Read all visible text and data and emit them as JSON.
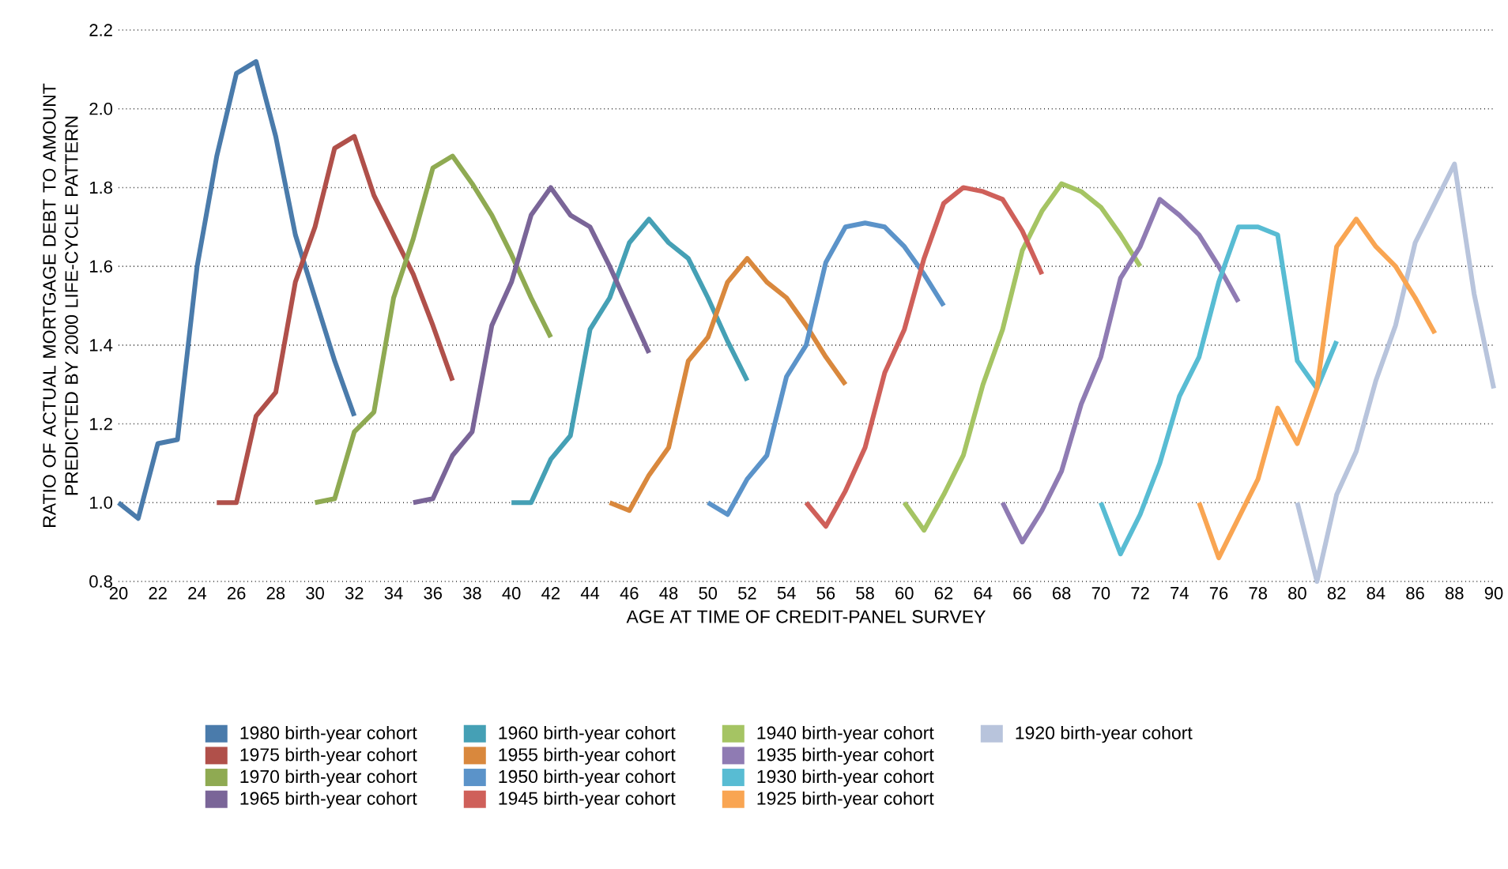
{
  "chart_data": {
    "type": "line",
    "xlabel": "AGE AT TIME OF CREDIT-PANEL SURVEY",
    "ylabel": "RATIO OF ACTUAL MORTGAGE DEBT TO AMOUNT PREDICTED BY 2000 LIFE-CYCLE PATTERN",
    "xlim": [
      20,
      90
    ],
    "ylim": [
      0.8,
      2.2
    ],
    "xticks": [
      20,
      22,
      24,
      26,
      28,
      30,
      32,
      34,
      36,
      38,
      40,
      42,
      44,
      46,
      48,
      50,
      52,
      54,
      56,
      58,
      60,
      62,
      64,
      66,
      68,
      70,
      72,
      74,
      76,
      78,
      80,
      82,
      84,
      86,
      88,
      90
    ],
    "yticks": [
      {
        "value": 0.8,
        "label": "0.8"
      },
      {
        "value": 1.0,
        "label": "1.0"
      },
      {
        "value": 1.2,
        "label": "1.2"
      },
      {
        "value": 1.4,
        "label": "1.4"
      },
      {
        "value": 1.6,
        "label": "1.6"
      },
      {
        "value": 1.8,
        "label": "1.8"
      },
      {
        "value": 2.0,
        "label": "2.0"
      },
      {
        "value": 2.2,
        "label": "2.2"
      }
    ],
    "grid": "y",
    "legend": "bottom",
    "marker": "none",
    "line_style": "solid",
    "series": [
      {
        "name": "1980 birth-year cohort",
        "color": "#4a7bab",
        "x": [
          20,
          21,
          22,
          23,
          24,
          25,
          26,
          27,
          28,
          29,
          30,
          31,
          32
        ],
        "values": [
          1.0,
          0.96,
          1.15,
          1.16,
          1.6,
          1.88,
          2.09,
          2.12,
          1.93,
          1.68,
          1.52,
          1.36,
          1.22
        ]
      },
      {
        "name": "1975 birth-year cohort",
        "color": "#b0504a",
        "x": [
          25,
          26,
          27,
          28,
          29,
          30,
          31,
          32,
          33,
          34,
          35,
          36,
          37
        ],
        "values": [
          1.0,
          1.0,
          1.22,
          1.28,
          1.56,
          1.7,
          1.9,
          1.93,
          1.78,
          1.68,
          1.58,
          1.45,
          1.31
        ]
      },
      {
        "name": "1970 birth-year cohort",
        "color": "#8faa52",
        "x": [
          30,
          31,
          32,
          33,
          34,
          35,
          36,
          37,
          38,
          39,
          40,
          41,
          42
        ],
        "values": [
          1.0,
          1.01,
          1.18,
          1.23,
          1.52,
          1.67,
          1.85,
          1.88,
          1.81,
          1.73,
          1.63,
          1.52,
          1.42
        ]
      },
      {
        "name": "1965 birth-year cohort",
        "color": "#7a6598",
        "x": [
          35,
          36,
          37,
          38,
          39,
          40,
          41,
          42,
          43,
          44,
          45,
          46,
          47
        ],
        "values": [
          1.0,
          1.01,
          1.12,
          1.18,
          1.45,
          1.56,
          1.73,
          1.8,
          1.73,
          1.7,
          1.6,
          1.49,
          1.38
        ]
      },
      {
        "name": "1960 birth-year cohort",
        "color": "#45a0b5",
        "x": [
          40,
          41,
          42,
          43,
          44,
          45,
          46,
          47,
          48,
          49,
          50,
          51,
          52
        ],
        "values": [
          1.0,
          1.0,
          1.11,
          1.17,
          1.44,
          1.52,
          1.66,
          1.72,
          1.66,
          1.62,
          1.52,
          1.41,
          1.31
        ]
      },
      {
        "name": "1955 birth-year cohort",
        "color": "#d9883d",
        "x": [
          45,
          46,
          47,
          48,
          49,
          50,
          51,
          52,
          53,
          54,
          55,
          56,
          57
        ],
        "values": [
          1.0,
          0.98,
          1.07,
          1.14,
          1.36,
          1.42,
          1.56,
          1.62,
          1.56,
          1.52,
          1.45,
          1.37,
          1.3
        ]
      },
      {
        "name": "1950 birth-year cohort",
        "color": "#5b93c9",
        "x": [
          50,
          51,
          52,
          53,
          54,
          55,
          56,
          57,
          58,
          59,
          60,
          61,
          62
        ],
        "values": [
          1.0,
          0.97,
          1.06,
          1.12,
          1.32,
          1.4,
          1.61,
          1.7,
          1.71,
          1.7,
          1.65,
          1.58,
          1.5
        ]
      },
      {
        "name": "1945 birth-year cohort",
        "color": "#cf605a",
        "x": [
          55,
          56,
          57,
          58,
          59,
          60,
          61,
          62,
          63,
          64,
          65,
          66,
          67
        ],
        "values": [
          1.0,
          0.94,
          1.03,
          1.14,
          1.33,
          1.44,
          1.62,
          1.76,
          1.8,
          1.79,
          1.77,
          1.69,
          1.58
        ]
      },
      {
        "name": "1940 birth-year cohort",
        "color": "#a5c463",
        "x": [
          60,
          61,
          62,
          63,
          64,
          65,
          66,
          67,
          68,
          69,
          70,
          71,
          72
        ],
        "values": [
          1.0,
          0.93,
          1.02,
          1.12,
          1.3,
          1.44,
          1.64,
          1.74,
          1.81,
          1.79,
          1.75,
          1.68,
          1.6
        ]
      },
      {
        "name": "1935 birth-year cohort",
        "color": "#8f7bb3",
        "x": [
          65,
          66,
          67,
          68,
          69,
          70,
          71,
          72,
          73,
          74,
          75,
          76,
          77
        ],
        "values": [
          1.0,
          0.9,
          0.98,
          1.08,
          1.25,
          1.37,
          1.57,
          1.65,
          1.77,
          1.73,
          1.68,
          1.6,
          1.51
        ]
      },
      {
        "name": "1930 birth-year cohort",
        "color": "#58bcd3",
        "x": [
          70,
          71,
          72,
          73,
          74,
          75,
          76,
          77,
          78,
          79,
          80,
          81,
          82
        ],
        "values": [
          1.0,
          0.87,
          0.97,
          1.1,
          1.27,
          1.37,
          1.56,
          1.7,
          1.7,
          1.68,
          1.36,
          1.29,
          1.41
        ]
      },
      {
        "name": "1925 birth-year cohort",
        "color": "#f9a552",
        "x": [
          75,
          76,
          77,
          78,
          79,
          80,
          81,
          82,
          83,
          84,
          85,
          86,
          87
        ],
        "values": [
          1.0,
          0.86,
          0.96,
          1.06,
          1.24,
          1.15,
          1.29,
          1.65,
          1.72,
          1.65,
          1.6,
          1.52,
          1.43
        ]
      },
      {
        "name": "1920 birth-year cohort",
        "color": "#b8c4dc",
        "x": [
          80,
          81,
          82,
          83,
          84,
          85,
          86,
          87,
          88,
          89,
          90
        ],
        "values": [
          1.0,
          0.8,
          1.02,
          1.13,
          1.31,
          1.45,
          1.66,
          1.76,
          1.86,
          1.53,
          1.29
        ]
      }
    ]
  }
}
